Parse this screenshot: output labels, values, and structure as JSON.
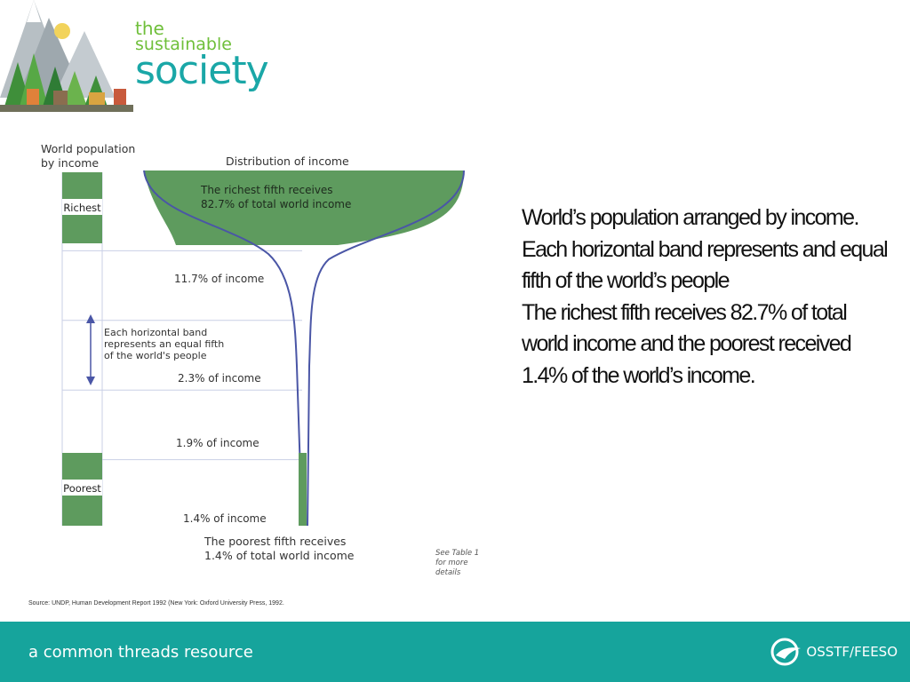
{
  "logo": {
    "line1": "the",
    "line2": "sustainable",
    "line3": "society"
  },
  "chart_data": {
    "type": "funnel",
    "left_heading": [
      "World population",
      "by income"
    ],
    "top_heading": "Distribution of income",
    "bands": [
      {
        "label": "Richest",
        "income_share": 82.7,
        "annotation": [
          "The richest fifth receives",
          "82.7% of total world income"
        ]
      },
      {
        "label": "",
        "income_share": 11.7,
        "annotation": [
          "11.7% of income"
        ]
      },
      {
        "label": "",
        "income_share": 2.3,
        "annotation": [
          "2.3% of income"
        ]
      },
      {
        "label": "",
        "income_share": 1.9,
        "annotation": [
          "1.9% of income"
        ]
      },
      {
        "label": "Poorest",
        "income_share": 1.4,
        "annotation": [
          "1.4% of income"
        ]
      }
    ],
    "band_note": [
      "Each horizontal band",
      "represents an equal fifth",
      "of the world's people"
    ],
    "bottom_note": [
      "The poorest fifth receives",
      "1.4% of total world income"
    ],
    "side_note": [
      "See Table 1",
      "for more",
      "details"
    ],
    "colors": {
      "fill": "#5e9b5e",
      "line": "#4a56a6",
      "grid": "#c9cfe6"
    }
  },
  "body_text": {
    "p1": "World’s population arranged by income. Each horizontal band represents and equal fifth of the world’s people",
    "p2": "The richest fifth receives 82.7% of total world income and the poorest received 1.4% of the world’s income."
  },
  "source": "Source: UNDP, Human Development Report 1992 (New York: Oxford University Press, 1992.",
  "footer": {
    "tagline": "a common threads resource",
    "brand": "OSSTF/FEESO",
    "color": "#16a49c"
  }
}
